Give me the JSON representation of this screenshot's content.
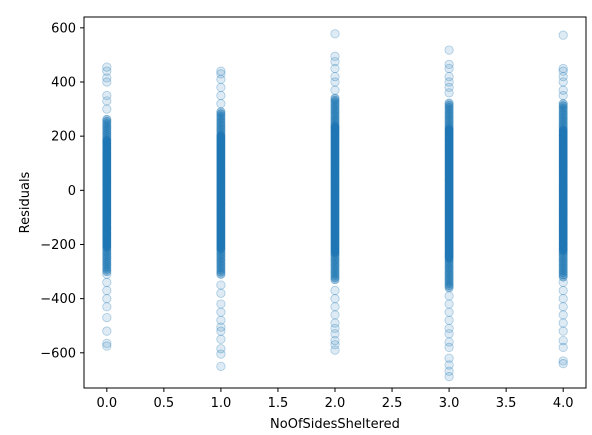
{
  "chart_data": {
    "type": "scatter",
    "title": "",
    "xlabel": "NoOfSidesSheltered",
    "ylabel": "Residuals",
    "xlim": [
      -0.2,
      4.2
    ],
    "ylim": [
      -730,
      640
    ],
    "xticks": [
      0.0,
      0.5,
      1.0,
      1.5,
      2.0,
      2.5,
      3.0,
      3.5,
      4.0
    ],
    "xtick_labels": [
      "0.0",
      "0.5",
      "1.0",
      "1.5",
      "2.0",
      "2.5",
      "3.0",
      "3.5",
      "4.0"
    ],
    "yticks": [
      -600,
      -400,
      -200,
      0,
      200,
      400,
      600
    ],
    "ytick_labels": [
      "−600",
      "−400",
      "−200",
      "0",
      "200",
      "400",
      "600"
    ],
    "grid": false,
    "marker_color": "#1f77b4",
    "marker_alpha": 0.15,
    "columns": [
      {
        "x": 0,
        "dense_range": [
          -300,
          270
        ],
        "points": [
          -575,
          -565,
          -520,
          -470,
          -430,
          -400,
          -370,
          -340,
          -310,
          300,
          330,
          350,
          400,
          415,
          440,
          455
        ]
      },
      {
        "x": 1,
        "dense_range": [
          -310,
          290
        ],
        "points": [
          -650,
          -605,
          -585,
          -550,
          -520,
          -505,
          -480,
          -450,
          -420,
          -380,
          -350,
          320,
          350,
          380,
          410,
          430,
          440
        ]
      },
      {
        "x": 2,
        "dense_range": [
          -330,
          340
        ],
        "points": [
          -590,
          -570,
          -555,
          -530,
          -510,
          -490,
          -460,
          -430,
          -400,
          -370,
          370,
          400,
          420,
          450,
          475,
          495,
          578
        ]
      },
      {
        "x": 3,
        "dense_range": [
          -360,
          330
        ],
        "points": [
          -688,
          -668,
          -645,
          -620,
          -580,
          -560,
          -530,
          -510,
          -480,
          -450,
          -420,
          -390,
          360,
          380,
          400,
          420,
          450,
          465,
          518
        ]
      },
      {
        "x": 4,
        "dense_range": [
          -320,
          320
        ],
        "points": [
          -640,
          -630,
          -580,
          -555,
          -520,
          -490,
          -460,
          -430,
          -400,
          -370,
          -340,
          350,
          370,
          400,
          420,
          440,
          450,
          573
        ]
      }
    ]
  }
}
